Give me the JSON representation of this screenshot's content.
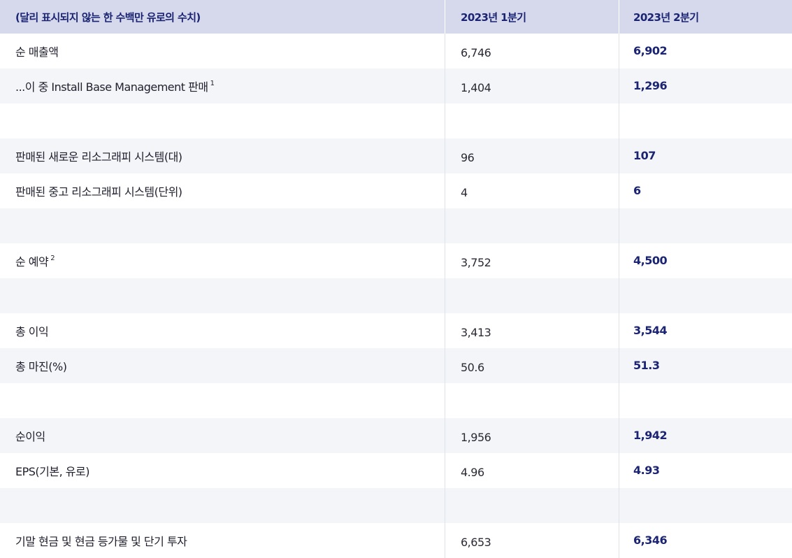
{
  "header": {
    "label": "(달리 표시되지 않는 한 수백만 유로의 수치)",
    "col1": "2023년 1분기",
    "col2": "2023년 2분기"
  },
  "rows": [
    {
      "label": "순 매출액",
      "sup": "",
      "q1": "6,746",
      "q2": "6,902"
    },
    {
      "label": "...이 중 Install Base Management 판매",
      "sup": "1",
      "q1": "1,404",
      "q2": "1,296"
    },
    {
      "label": "",
      "sup": "",
      "q1": "",
      "q2": ""
    },
    {
      "label": "판매된 새로운 리소그래피 시스템(대)",
      "sup": "",
      "q1": "96",
      "q2": "107"
    },
    {
      "label": "판매된 중고 리소그래피 시스템(단위)",
      "sup": "",
      "q1": "4",
      "q2": "6"
    },
    {
      "label": "",
      "sup": "",
      "q1": "",
      "q2": ""
    },
    {
      "label": "순 예약",
      "sup": "2",
      "q1": "3,752",
      "q2": "4,500"
    },
    {
      "label": "",
      "sup": "",
      "q1": "",
      "q2": ""
    },
    {
      "label": "총 이익",
      "sup": "",
      "q1": "3,413",
      "q2": "3,544"
    },
    {
      "label": "총 마진(%)",
      "sup": "",
      "q1": "50.6",
      "q2": "51.3"
    },
    {
      "label": "",
      "sup": "",
      "q1": "",
      "q2": ""
    },
    {
      "label": "순이익",
      "sup": "",
      "q1": "1,956",
      "q2": "1,942"
    },
    {
      "label": "EPS(기본, 유로)",
      "sup": "",
      "q1": "4.96",
      "q2": "4.93"
    },
    {
      "label": "",
      "sup": "",
      "q1": "",
      "q2": ""
    },
    {
      "label": "기말 현금 및 현금 등가물 및 단기 투자",
      "sup": "",
      "q1": "6,653",
      "q2": "6,346"
    }
  ],
  "colors": {
    "header_bg": "#d6d8ec",
    "header_text": "#1a2472",
    "accent_value": "#1a2472",
    "row_white": "#ffffff",
    "row_gray": "#f4f5f8"
  }
}
